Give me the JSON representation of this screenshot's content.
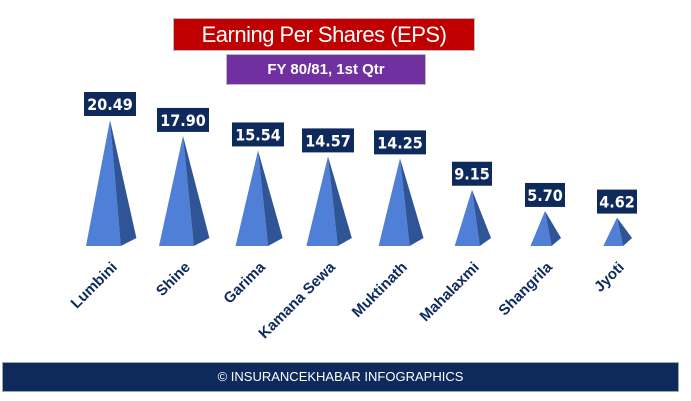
{
  "chart_data": {
    "type": "bar",
    "title": "Earning Per Shares (EPS)",
    "subtitle": "FY 80/81, 1st Qtr",
    "categories": [
      "Lumbini",
      "Shine",
      "Garima",
      "Kamana Sewa",
      "Muktinath",
      "Mahalaxmi",
      "Shangrila",
      "Jyoti"
    ],
    "values": [
      20.49,
      17.9,
      15.54,
      14.57,
      14.25,
      9.15,
      5.7,
      4.62
    ],
    "labels": [
      "20.49",
      "17.90",
      "15.54",
      "14.57",
      "14.25",
      "9.15",
      "5.70",
      "4.62"
    ],
    "xlabel": "",
    "ylabel": "",
    "ylim": [
      0,
      21
    ],
    "grid": false,
    "colors": {
      "light": "#4f7fd6",
      "dark": "#2f5597",
      "label_bg": "#0e2a5c",
      "category": "#0e2a5c"
    }
  },
  "footer": "© INSURANCEKHABAR INFOGRAPHICS"
}
